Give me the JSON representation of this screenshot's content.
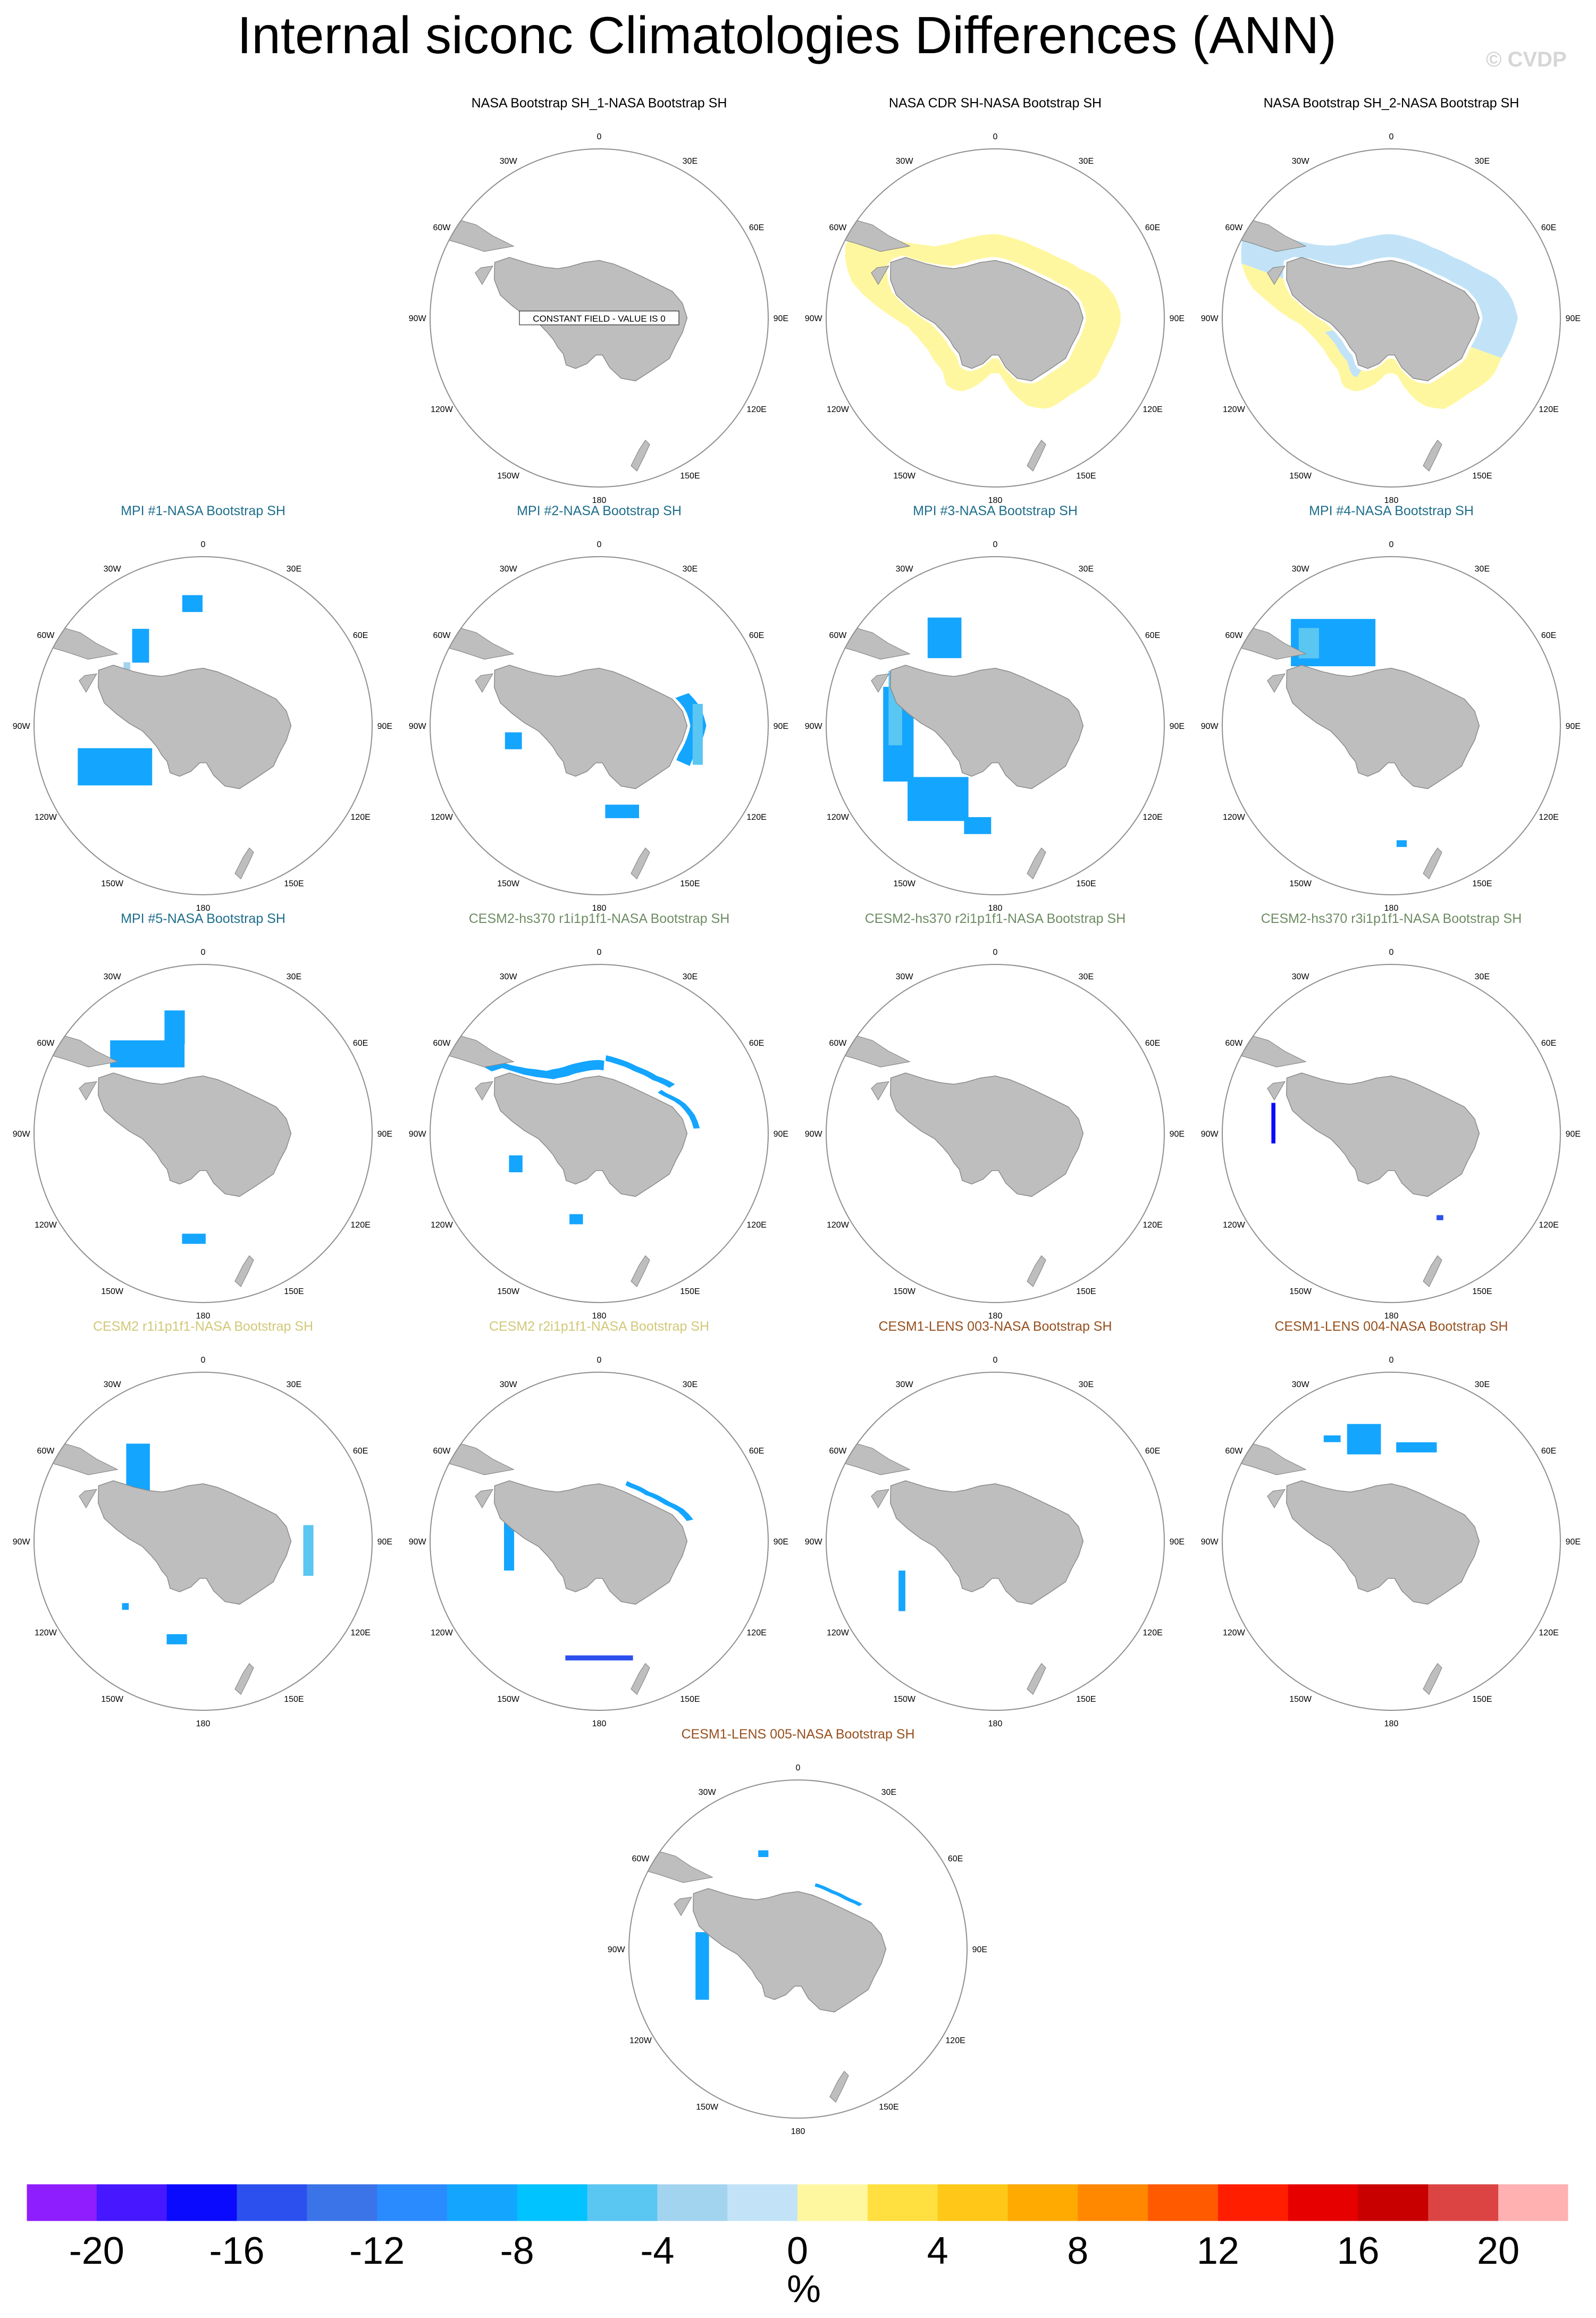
{
  "page": {
    "title": "Internal siconc Climatologies Differences (ANN)",
    "watermark": "© CVDP"
  },
  "map_labels": {
    "lon": [
      "0",
      "30E",
      "60E",
      "90E",
      "120E",
      "150E",
      "180",
      "150W",
      "120W",
      "90W",
      "60W",
      "30W"
    ]
  },
  "colors": {
    "land": "#bebebe",
    "coast": "#8a8a8a",
    "circle": "#8f8f8f",
    "title_obs": "#000000",
    "title_mpi": "#1e6e8c",
    "title_cesm2hs": "#6e8c64",
    "title_cesm2": "#d2c878",
    "title_cesm1": "#96501e"
  },
  "panels": [
    {
      "title": "NASA Bootstrap SH_1-NASA Bootstrap SH",
      "group": "obs",
      "note": "CONSTANT FIELD - VALUE IS 0",
      "regions": []
    },
    {
      "title": "NASA CDR SH-NASA Bootstrap SH",
      "group": "obs",
      "regions": [
        {
          "type": "ring",
          "bin": 0.5,
          "lon0": 0,
          "lon1": 360,
          "r0": 1.0,
          "r1": 1.4
        }
      ]
    },
    {
      "title": "NASA Bootstrap SH_2-NASA Bootstrap SH",
      "group": "obs",
      "regions": [
        {
          "type": "ring",
          "bin": 0.5,
          "lon0": 110,
          "lon1": 290,
          "r0": 1.0,
          "r1": 1.4
        },
        {
          "type": "ring",
          "bin": -0.5,
          "lon0": 290,
          "lon1": 470,
          "r0": 1.0,
          "r1": 1.4
        },
        {
          "type": "ring",
          "bin": -0.5,
          "lon0": 210,
          "lon1": 260,
          "r0": 1.0,
          "r1": 1.15
        }
      ]
    },
    {
      "title": "MPI #1-NASA Bootstrap SH",
      "group": "mpi",
      "regions": [
        {
          "type": "blob",
          "bin": -10,
          "lon": 245,
          "r": 1.15,
          "w": 0.22,
          "h": 0.11
        },
        {
          "type": "blob",
          "bin": -10,
          "lon": 322,
          "r": 1.2,
          "w": 0.05,
          "h": 0.1
        },
        {
          "type": "blob",
          "bin": -3,
          "lon": 305,
          "r": 1.1,
          "w": 0.02,
          "h": 0.06
        },
        {
          "type": "blob",
          "bin": -10,
          "lon": 355,
          "r": 1.45,
          "w": 0.06,
          "h": 0.05
        }
      ]
    },
    {
      "title": "MPI #2-NASA Bootstrap SH",
      "group": "mpi",
      "regions": [
        {
          "type": "ring",
          "bin": -10,
          "lon0": 70,
          "lon1": 115,
          "r0": 1.0,
          "r1": 1.18
        },
        {
          "type": "blob",
          "bin": -5,
          "lon": 95,
          "r": 1.17,
          "w": 0.03,
          "h": 0.18
        },
        {
          "type": "blob",
          "bin": -10,
          "lon": 260,
          "r": 1.03,
          "w": 0.05,
          "h": 0.05
        },
        {
          "type": "blob",
          "bin": -10,
          "lon": 165,
          "r": 1.05,
          "w": 0.1,
          "h": 0.04
        }
      ]
    },
    {
      "title": "MPI #3-NASA Bootstrap SH",
      "group": "mpi",
      "regions": [
        {
          "type": "blob",
          "bin": -10,
          "lon": 265,
          "r": 1.15,
          "w": 0.09,
          "h": 0.28
        },
        {
          "type": "blob",
          "bin": -6,
          "lon": 280,
          "r": 1.2,
          "w": 0.04,
          "h": 0.22
        },
        {
          "type": "blob",
          "bin": -10,
          "lon": 218,
          "r": 1.1,
          "w": 0.18,
          "h": 0.13
        },
        {
          "type": "blob",
          "bin": -10,
          "lon": 190,
          "r": 1.2,
          "w": 0.08,
          "h": 0.05
        },
        {
          "type": "blob",
          "bin": -10,
          "lon": 330,
          "r": 1.2,
          "w": 0.1,
          "h": 0.12
        }
      ]
    },
    {
      "title": "MPI #4-NASA Bootstrap SH",
      "group": "mpi",
      "regions": [
        {
          "type": "blob",
          "bin": -10,
          "lon": 325,
          "r": 1.2,
          "w": 0.25,
          "h": 0.14
        },
        {
          "type": "blob",
          "bin": -5,
          "lon": 315,
          "r": 1.38,
          "w": 0.06,
          "h": 0.09
        },
        {
          "type": "blob",
          "bin": -10,
          "lon": 175,
          "r": 1.4,
          "w": 0.03,
          "h": 0.02
        }
      ]
    },
    {
      "title": "MPI #5-NASA Bootstrap SH",
      "group": "mpi",
      "regions": [
        {
          "type": "blob",
          "bin": -10,
          "lon": 325,
          "r": 1.15,
          "w": 0.22,
          "h": 0.08
        },
        {
          "type": "blob",
          "bin": -10,
          "lon": 345,
          "r": 1.3,
          "w": 0.06,
          "h": 0.1
        },
        {
          "type": "blob",
          "bin": -10,
          "lon": 185,
          "r": 1.25,
          "w": 0.07,
          "h": 0.03
        }
      ]
    },
    {
      "title": "CESM2-hs370 r1i1p1f1-NASA Bootstrap SH",
      "group": "cesm2hs",
      "regions": [
        {
          "type": "ring",
          "bin": -10,
          "lon0": 300,
          "lon1": 365,
          "r0": 1.05,
          "r1": 1.22
        },
        {
          "type": "ring",
          "bin": -10,
          "lon0": 5,
          "lon1": 60,
          "r0": 1.22,
          "r1": 1.32
        },
        {
          "type": "ring",
          "bin": -10,
          "lon0": 55,
          "lon1": 90,
          "r0": 1.05,
          "r1": 1.12
        },
        {
          "type": "blob",
          "bin": -10,
          "lon": 250,
          "r": 1.05,
          "w": 0.04,
          "h": 0.05
        },
        {
          "type": "blob",
          "bin": -10,
          "lon": 195,
          "r": 1.05,
          "w": 0.04,
          "h": 0.03
        }
      ]
    },
    {
      "title": "CESM2-hs370 r2i1p1f1-NASA Bootstrap SH",
      "group": "cesm2hs",
      "regions": []
    },
    {
      "title": "CESM2-hs370 r3i1p1f1-NASA Bootstrap SH",
      "group": "cesm2hs",
      "regions": [
        {
          "type": "blob",
          "bin": -17,
          "lon": 275,
          "r": 1.4,
          "w": 0.012,
          "h": 0.12
        },
        {
          "type": "blob",
          "bin": -10,
          "lon": 290,
          "r": 1.15,
          "w": 0.02,
          "h": 0.03
        },
        {
          "type": "blob",
          "bin": -15,
          "lon": 150,
          "r": 1.15,
          "w": 0.02,
          "h": 0.015
        }
      ]
    },
    {
      "title": "CESM2 r1i1p1f1-NASA Bootstrap SH",
      "group": "cesm2",
      "regions": [
        {
          "type": "blob",
          "bin": -10,
          "lon": 318,
          "r": 1.15,
          "w": 0.07,
          "h": 0.15
        },
        {
          "type": "blob",
          "bin": -5,
          "lon": 95,
          "r": 1.25,
          "w": 0.03,
          "h": 0.15
        },
        {
          "type": "blob",
          "bin": -10,
          "lon": 195,
          "r": 1.2,
          "w": 0.06,
          "h": 0.03
        },
        {
          "type": "blob",
          "bin": -10,
          "lon": 230,
          "r": 1.2,
          "w": 0.02,
          "h": 0.02
        }
      ]
    },
    {
      "title": "CESM2 r2i1p1f1-NASA Bootstrap SH",
      "group": "cesm2",
      "regions": [
        {
          "type": "ring",
          "bin": -10,
          "lon0": 25,
          "lon1": 80,
          "r0": 1.05,
          "r1": 1.13
        },
        {
          "type": "blob",
          "bin": -10,
          "lon": 275,
          "r": 1.07,
          "w": 0.03,
          "h": 0.22
        },
        {
          "type": "blob",
          "bin": -15,
          "lon": 180,
          "r": 1.38,
          "w": 0.2,
          "h": 0.015
        }
      ]
    },
    {
      "title": "CESM1-LENS 003-NASA Bootstrap SH",
      "group": "cesm1",
      "regions": [
        {
          "type": "blob",
          "bin": -10,
          "lon": 242,
          "r": 1.25,
          "w": 0.02,
          "h": 0.12
        }
      ]
    },
    {
      "title": "CESM1-LENS 004-NASA Bootstrap SH",
      "group": "cesm1",
      "regions": [
        {
          "type": "blob",
          "bin": -10,
          "lon": 345,
          "r": 1.25,
          "w": 0.1,
          "h": 0.09
        },
        {
          "type": "blob",
          "bin": -10,
          "lon": 15,
          "r": 1.15,
          "w": 0.12,
          "h": 0.03
        },
        {
          "type": "blob",
          "bin": -10,
          "lon": 330,
          "r": 1.4,
          "w": 0.05,
          "h": 0.02
        }
      ]
    },
    {
      "title": "CESM1-LENS 005-NASA Bootstrap SH",
      "group": "cesm1",
      "regions": [
        {
          "type": "ring",
          "bin": -10,
          "lon0": 15,
          "lon1": 55,
          "r0": 1.1,
          "r1": 1.16
        },
        {
          "type": "blob",
          "bin": -10,
          "lon": 260,
          "r": 1.15,
          "w": 0.04,
          "h": 0.2
        },
        {
          "type": "blob",
          "bin": -10,
          "lon": 340,
          "r": 1.2,
          "w": 0.03,
          "h": 0.02
        }
      ]
    }
  ],
  "colorbar": {
    "units": "%",
    "tick_labels": [
      "-20",
      "-16",
      "-12",
      "-8",
      "-4",
      "0",
      "4",
      "8",
      "12",
      "16",
      "20"
    ],
    "colors": [
      "#8f1eff",
      "#4617ff",
      "#0a0aff",
      "#2c50ee",
      "#3b73e8",
      "#2a8bff",
      "#14a5ff",
      "#00c3ff",
      "#5ac6f2",
      "#a3d4ef",
      "#c2e3f7",
      "#fff7a0",
      "#ffe040",
      "#ffc818",
      "#ffaa00",
      "#ff8800",
      "#ff5a00",
      "#ff1e00",
      "#e60000",
      "#c80000",
      "#dc4444",
      "#ffb0b0"
    ]
  }
}
